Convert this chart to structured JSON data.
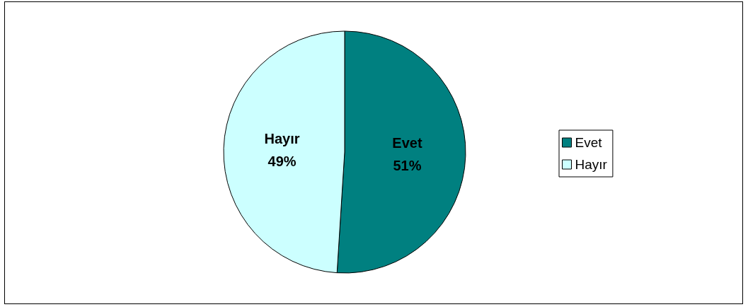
{
  "chart_data": {
    "type": "pie",
    "categories": [
      "Evet",
      "Hayır"
    ],
    "values": [
      51,
      49
    ],
    "colors": [
      "#008080",
      "#ccffff"
    ],
    "value_labels": [
      "51%",
      "49%"
    ],
    "legend": "right"
  }
}
